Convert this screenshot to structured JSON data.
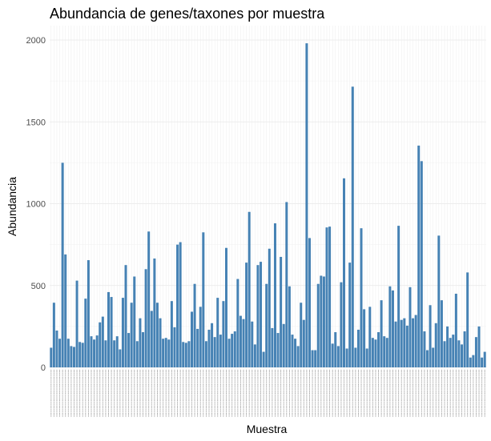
{
  "chart_data": {
    "type": "bar",
    "title": "Abundancia de genes/taxones por muestra",
    "xlabel": "Muestra",
    "ylabel": "Abundancia",
    "ylim": [
      0,
      2100
    ],
    "yticks": [
      0,
      500,
      1000,
      1500,
      2000
    ],
    "grid": true,
    "bar_color": "#4682B4",
    "values": [
      120,
      395,
      225,
      175,
      1250,
      690,
      175,
      130,
      125,
      530,
      155,
      150,
      420,
      655,
      190,
      170,
      195,
      275,
      310,
      165,
      460,
      430,
      165,
      190,
      110,
      425,
      625,
      210,
      395,
      555,
      160,
      300,
      215,
      600,
      830,
      345,
      665,
      395,
      300,
      175,
      180,
      170,
      405,
      245,
      750,
      765,
      155,
      150,
      160,
      340,
      510,
      235,
      370,
      825,
      160,
      230,
      270,
      185,
      425,
      200,
      405,
      730,
      175,
      205,
      220,
      540,
      315,
      295,
      640,
      950,
      280,
      140,
      625,
      645,
      95,
      510,
      725,
      240,
      880,
      210,
      675,
      265,
      1010,
      495,
      200,
      175,
      130,
      395,
      290,
      1980,
      790,
      105,
      105,
      510,
      560,
      555,
      855,
      860,
      145,
      215,
      130,
      520,
      1155,
      115,
      640,
      1715,
      120,
      230,
      850,
      355,
      115,
      370,
      180,
      170,
      215,
      410,
      190,
      180,
      495,
      470,
      280,
      865,
      290,
      300,
      255,
      490,
      300,
      320,
      1355,
      1260,
      220,
      105,
      380,
      120,
      270,
      805,
      410,
      160,
      250,
      180,
      200,
      450,
      165,
      140,
      220,
      580,
      60,
      75,
      185,
      250,
      60,
      95
    ]
  }
}
